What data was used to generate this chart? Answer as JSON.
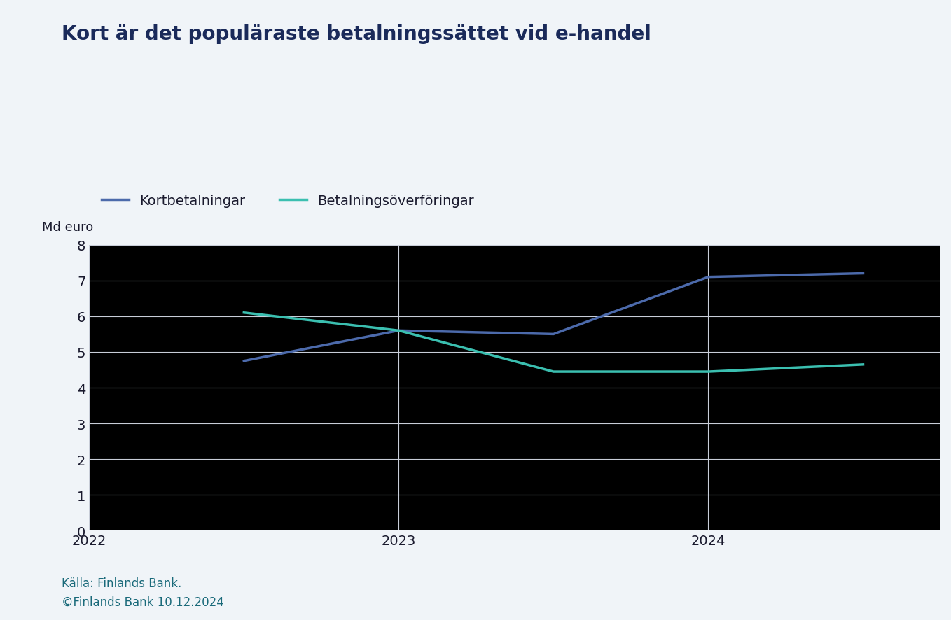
{
  "title": "Kort är det populäraste betalningssättet vid e-handel",
  "ylabel": "Md euro",
  "source_line1": "Källa: Finlands Bank.",
  "source_line2": "©Finlands Bank 10.12.2024",
  "background_color": "#f0f4f8",
  "plot_bg_color": "#000000",
  "x_values": [
    2022.5,
    2023.0,
    2023.5,
    2024.0,
    2024.5
  ],
  "kortbetalningar": [
    4.75,
    5.6,
    5.5,
    7.1,
    7.2
  ],
  "betalningsoforingar": [
    6.1,
    5.6,
    4.45,
    4.45,
    4.65
  ],
  "kort_color": "#4c6aab",
  "betal_color": "#3bbfb0",
  "line_width": 2.5,
  "ylim": [
    0,
    8
  ],
  "yticks": [
    0,
    1,
    2,
    3,
    4,
    5,
    6,
    7,
    8
  ],
  "xlim": [
    2022.0,
    2024.75
  ],
  "xticks": [
    2022,
    2023,
    2024
  ],
  "grid_color": "#c8cdd8",
  "title_color": "#1a2a5a",
  "axis_text_color": "#1a1a2e",
  "label_color": "#1a6a7a",
  "legend_kort": "Kortbetalningar",
  "legend_betal": "Betalningsöverföringar",
  "title_fontsize": 20,
  "label_fontsize": 13,
  "tick_fontsize": 14,
  "legend_fontsize": 14,
  "source_fontsize": 12
}
